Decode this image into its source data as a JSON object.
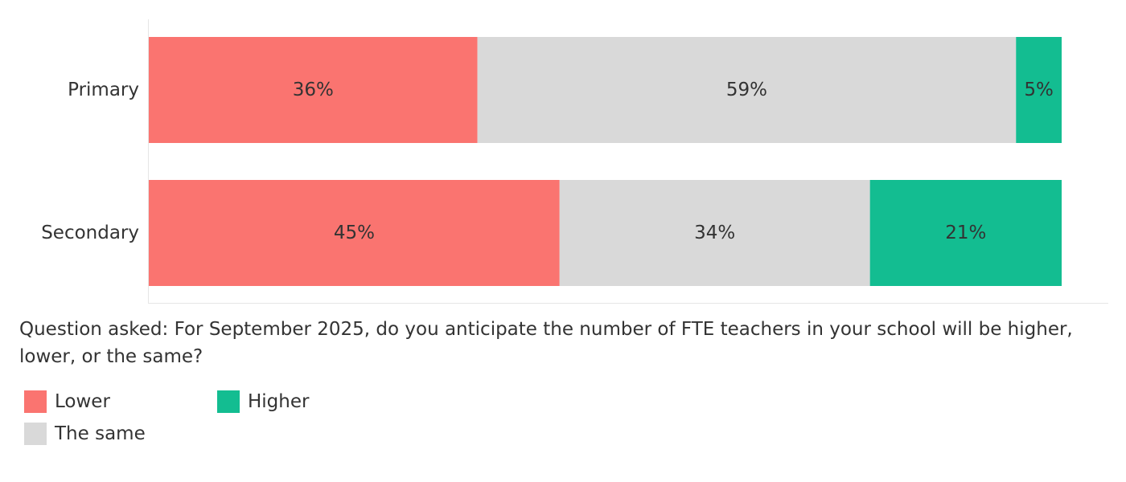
{
  "chart_data": {
    "type": "bar",
    "orientation": "horizontal",
    "stacked": "percent",
    "categories": [
      "Primary",
      "Secondary"
    ],
    "series": [
      {
        "name": "Lower",
        "color": "#fa7470",
        "values": [
          36,
          45
        ],
        "labels": [
          "36%",
          "45%"
        ]
      },
      {
        "name": "The same",
        "color": "#d9d9d9",
        "values": [
          59,
          34
        ],
        "labels": [
          "59%",
          "34%"
        ]
      },
      {
        "name": "Higher",
        "color": "#13bd91",
        "values": [
          5,
          21
        ],
        "labels": [
          "5%",
          "21%"
        ]
      }
    ],
    "xlim": [
      0,
      100
    ],
    "grid": false,
    "legend_position": "bottom-left"
  },
  "note": "Question asked: For September 2025, do you anticipate the number of FTE teachers in your school will be higher, lower, or the same?",
  "legend": {
    "items": [
      {
        "label": "Lower",
        "color": "#fa7470"
      },
      {
        "label": "Higher",
        "color": "#13bd91"
      },
      {
        "label": "The same",
        "color": "#d9d9d9"
      }
    ]
  }
}
